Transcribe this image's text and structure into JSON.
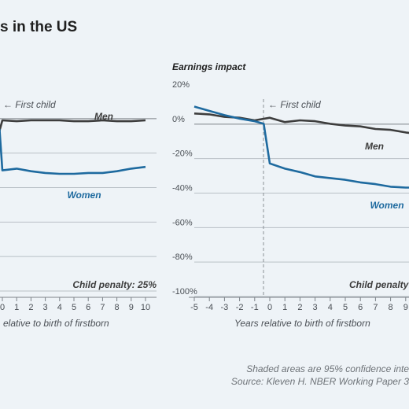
{
  "page": {
    "title": "s in the US",
    "footnote": "Shaded areas are 95% confidence inte",
    "source": "Source: Kleven H. NBER Working Paper 3"
  },
  "colors": {
    "background": "#eef3f7",
    "men": "#3d3d3d",
    "women": "#1e6a9f",
    "grid": "#b9c0c6",
    "axis": "#7d8389",
    "text": "#4a4f55"
  },
  "chart_data": [
    {
      "type": "line",
      "title": "",
      "ylabel": "",
      "xlabel": "elative to birth of firstborn",
      "event_label": "First child",
      "annotation": "Child penalty: 25%",
      "x_ticks": [
        "0",
        "1",
        "2",
        "3",
        "4",
        "5",
        "6",
        "7",
        "8",
        "9",
        "10"
      ],
      "ylim": [
        -100,
        20
      ],
      "series": [
        {
          "name": "Men",
          "x": [
            -0.2,
            0,
            1,
            2,
            3,
            4,
            5,
            6,
            7,
            8,
            9,
            10
          ],
          "values": [
            -7,
            -1,
            -1.5,
            -1,
            -1,
            -1,
            -1.5,
            -1.5,
            -1,
            -1.5,
            -1.5,
            -1
          ]
        },
        {
          "name": "Women",
          "x": [
            -0.2,
            0,
            1,
            2,
            3,
            4,
            5,
            6,
            7,
            8,
            9,
            10
          ],
          "values": [
            -6,
            -30,
            -29,
            -30.5,
            -31.5,
            -32,
            -32,
            -31.5,
            -31.5,
            -30.5,
            -29,
            -28
          ]
        }
      ]
    },
    {
      "type": "line",
      "title": "Earnings impact",
      "ylabel": "",
      "xlabel": "Years relative to birth of firstborn",
      "event_label": "First child",
      "annotation": "Child penalty:",
      "y_ticks": [
        "20%",
        "0%",
        "-20%",
        "-40%",
        "-60%",
        "-80%",
        "-100%"
      ],
      "x_ticks": [
        "-5",
        "-4",
        "-3",
        "-2",
        "-1",
        "0",
        "1",
        "2",
        "3",
        "4",
        "5",
        "6",
        "7",
        "8",
        "9"
      ],
      "ylim": [
        -100,
        20
      ],
      "series": [
        {
          "name": "Men",
          "x": [
            -5,
            -4,
            -3,
            -2,
            -1,
            0,
            1,
            2,
            3,
            4,
            5,
            6,
            7,
            8,
            9,
            9.9
          ],
          "values": [
            3,
            2.5,
            1,
            0.5,
            -1,
            0.5,
            -2,
            -1,
            -1.5,
            -3,
            -4,
            -4.5,
            -6,
            -6.5,
            -8,
            -9
          ]
        },
        {
          "name": "Women",
          "x": [
            -5,
            -4,
            -3,
            -2,
            -1,
            -0.4,
            0,
            1,
            2,
            3,
            4,
            5,
            6,
            7,
            8,
            9,
            9.9
          ],
          "values": [
            7,
            4.5,
            2,
            0,
            -1.5,
            -3,
            -26,
            -29,
            -31,
            -33.5,
            -34.5,
            -35.5,
            -37,
            -38,
            -39.5,
            -40,
            -40
          ]
        }
      ]
    }
  ]
}
